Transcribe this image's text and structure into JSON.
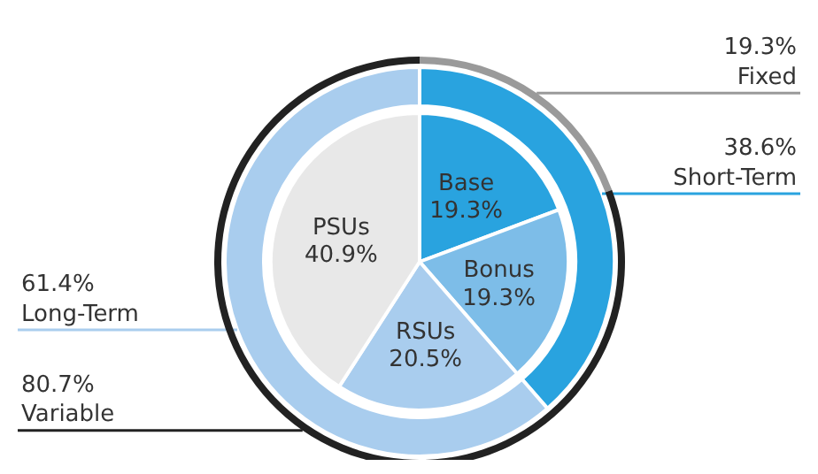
{
  "chart_data": [
    {
      "type": "pie",
      "categories": [
        "Base",
        "Bonus",
        "RSUs",
        "PSUs"
      ],
      "values": [
        19.3,
        19.3,
        20.5,
        40.9
      ],
      "value_labels": [
        "19.3%",
        "19.3%",
        "20.5%",
        "40.9%"
      ],
      "colors": [
        "#29a3df",
        "#7dbde8",
        "#a9cdee",
        "#e8e8e8"
      ]
    },
    {
      "type": "donut",
      "categories": [
        "Short-Term",
        "Long-Term"
      ],
      "values": [
        38.6,
        61.4
      ],
      "value_labels": [
        "38.6%",
        "61.4%"
      ],
      "colors": [
        "#29a3df",
        "#a9cdee"
      ]
    },
    {
      "type": "donut",
      "categories": [
        "Fixed",
        "Variable"
      ],
      "values": [
        19.3,
        80.7
      ],
      "value_labels": [
        "19.3%",
        "80.7%"
      ],
      "colors": [
        "#9a9a9a",
        "#222222"
      ]
    }
  ]
}
